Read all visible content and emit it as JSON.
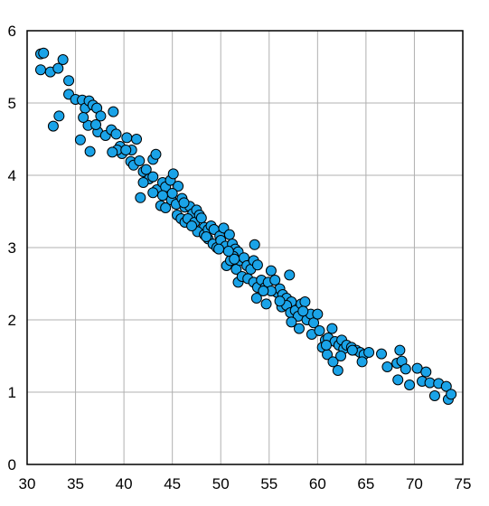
{
  "chart_data": {
    "type": "scatter",
    "title": "",
    "xlabel": "",
    "ylabel": "",
    "xlim": [
      30,
      75
    ],
    "ylim": [
      0,
      6
    ],
    "x_ticks": [
      30,
      35,
      40,
      45,
      50,
      55,
      60,
      65,
      70,
      75
    ],
    "y_ticks": [
      0,
      1,
      2,
      3,
      4,
      5,
      6
    ],
    "grid": true,
    "legend": "none",
    "point_color": "#1aa3e8",
    "point_edge_color": "#000000",
    "series": [
      {
        "points": [
          [
            31.4,
            5.68
          ],
          [
            31.7,
            5.69
          ],
          [
            31.4,
            5.46
          ],
          [
            32.4,
            5.43
          ],
          [
            33.2,
            5.48
          ],
          [
            33.7,
            5.6
          ],
          [
            34.3,
            5.31
          ],
          [
            32.7,
            4.68
          ],
          [
            33.3,
            4.82
          ],
          [
            34.3,
            5.12
          ],
          [
            35.0,
            5.05
          ],
          [
            35.7,
            5.04
          ],
          [
            36.0,
            4.93
          ],
          [
            36.4,
            5.03
          ],
          [
            36.8,
            4.97
          ],
          [
            37.2,
            4.93
          ],
          [
            37.6,
            4.82
          ],
          [
            37.3,
            4.6
          ],
          [
            38.1,
            4.55
          ],
          [
            38.7,
            4.63
          ],
          [
            38.9,
            4.88
          ],
          [
            35.5,
            4.49
          ],
          [
            36.5,
            4.33
          ],
          [
            36.3,
            4.69
          ],
          [
            39.2,
            4.57
          ],
          [
            39.6,
            4.4
          ],
          [
            39.8,
            4.3
          ],
          [
            39.3,
            4.35
          ],
          [
            38.8,
            4.32
          ],
          [
            40.3,
            4.52
          ],
          [
            40.8,
            4.35
          ],
          [
            41.3,
            4.5
          ],
          [
            40.7,
            4.19
          ],
          [
            41.0,
            4.14
          ],
          [
            41.6,
            4.2
          ],
          [
            42.0,
            4.05
          ],
          [
            42.3,
            4.08
          ],
          [
            42.6,
            3.95
          ],
          [
            43.0,
            4.22
          ],
          [
            43.3,
            4.29
          ],
          [
            43.0,
            3.98
          ],
          [
            43.4,
            3.8
          ],
          [
            44.0,
            3.9
          ],
          [
            44.3,
            3.84
          ],
          [
            44.8,
            3.93
          ],
          [
            45.1,
            4.02
          ],
          [
            41.7,
            3.69
          ],
          [
            43.0,
            3.76
          ],
          [
            43.8,
            3.58
          ],
          [
            44.3,
            3.55
          ],
          [
            44.9,
            3.66
          ],
          [
            45.4,
            3.6
          ],
          [
            45.6,
            3.85
          ],
          [
            46.0,
            3.68
          ],
          [
            46.3,
            3.56
          ],
          [
            45.5,
            3.45
          ],
          [
            45.9,
            3.4
          ],
          [
            46.3,
            3.35
          ],
          [
            46.8,
            3.57
          ],
          [
            47.1,
            3.47
          ],
          [
            46.6,
            3.4
          ],
          [
            47.3,
            3.35
          ],
          [
            47.5,
            3.52
          ],
          [
            47.8,
            3.45
          ],
          [
            48.0,
            3.41
          ],
          [
            48.3,
            3.28
          ],
          [
            47.6,
            3.22
          ],
          [
            48.3,
            3.18
          ],
          [
            48.7,
            3.25
          ],
          [
            49.0,
            3.3
          ],
          [
            49.3,
            3.25
          ],
          [
            48.7,
            3.12
          ],
          [
            49.2,
            3.05
          ],
          [
            49.6,
            3.0
          ],
          [
            49.9,
            3.16
          ],
          [
            50.3,
            3.27
          ],
          [
            50.0,
            3.1
          ],
          [
            50.5,
            3.02
          ],
          [
            50.9,
            3.18
          ],
          [
            51.2,
            3.05
          ],
          [
            51.5,
            2.98
          ],
          [
            51.8,
            2.94
          ],
          [
            51.3,
            2.88
          ],
          [
            50.6,
            2.75
          ],
          [
            51.0,
            2.82
          ],
          [
            51.6,
            2.7
          ],
          [
            52.0,
            2.82
          ],
          [
            52.4,
            2.86
          ],
          [
            52.7,
            2.75
          ],
          [
            53.1,
            2.7
          ],
          [
            53.4,
            2.82
          ],
          [
            53.8,
            2.76
          ],
          [
            53.5,
            3.04
          ],
          [
            51.8,
            2.52
          ],
          [
            52.2,
            2.6
          ],
          [
            52.8,
            2.57
          ],
          [
            53.4,
            2.52
          ],
          [
            53.8,
            2.45
          ],
          [
            54.2,
            2.55
          ],
          [
            54.6,
            2.45
          ],
          [
            54.9,
            2.52
          ],
          [
            55.2,
            2.68
          ],
          [
            55.6,
            2.55
          ],
          [
            55.8,
            2.38
          ],
          [
            56.1,
            2.43
          ],
          [
            56.4,
            2.35
          ],
          [
            56.8,
            2.3
          ],
          [
            57.1,
            2.62
          ],
          [
            57.3,
            2.25
          ],
          [
            53.7,
            2.3
          ],
          [
            54.7,
            2.22
          ],
          [
            55.2,
            2.4
          ],
          [
            56.3,
            2.18
          ],
          [
            56.8,
            2.2
          ],
          [
            57.2,
            2.1
          ],
          [
            57.7,
            2.13
          ],
          [
            58.0,
            2.05
          ],
          [
            58.3,
            2.22
          ],
          [
            58.7,
            2.25
          ],
          [
            57.3,
            1.97
          ],
          [
            58.1,
            1.88
          ],
          [
            58.9,
            2.0
          ],
          [
            59.3,
            2.08
          ],
          [
            59.6,
            1.96
          ],
          [
            60.0,
            2.08
          ],
          [
            59.4,
            1.8
          ],
          [
            60.2,
            1.85
          ],
          [
            60.8,
            1.72
          ],
          [
            61.1,
            1.75
          ],
          [
            61.5,
            1.88
          ],
          [
            61.8,
            1.7
          ],
          [
            62.2,
            1.65
          ],
          [
            62.5,
            1.72
          ],
          [
            62.7,
            1.6
          ],
          [
            63.0,
            1.65
          ],
          [
            60.5,
            1.62
          ],
          [
            61.0,
            1.52
          ],
          [
            61.6,
            1.42
          ],
          [
            62.1,
            1.3
          ],
          [
            63.5,
            1.62
          ],
          [
            64.0,
            1.58
          ],
          [
            64.4,
            1.55
          ],
          [
            64.8,
            1.52
          ],
          [
            65.3,
            1.55
          ],
          [
            64.6,
            1.42
          ],
          [
            66.6,
            1.53
          ],
          [
            67.2,
            1.35
          ],
          [
            68.2,
            1.4
          ],
          [
            68.5,
            1.58
          ],
          [
            68.7,
            1.43
          ],
          [
            69.1,
            1.32
          ],
          [
            68.3,
            1.17
          ],
          [
            69.5,
            1.1
          ],
          [
            70.3,
            1.33
          ],
          [
            70.8,
            1.15
          ],
          [
            71.2,
            1.28
          ],
          [
            71.6,
            1.13
          ],
          [
            72.1,
            0.95
          ],
          [
            72.5,
            1.12
          ],
          [
            73.3,
            1.08
          ],
          [
            73.5,
            0.9
          ],
          [
            73.8,
            0.97
          ],
          [
            60.9,
            1.65
          ],
          [
            63.6,
            1.58
          ],
          [
            62.4,
            1.5
          ],
          [
            47.0,
            3.3
          ],
          [
            44.0,
            3.72
          ],
          [
            40.2,
            4.35
          ],
          [
            37.1,
            4.7
          ],
          [
            35.8,
            4.8
          ],
          [
            46.2,
            3.62
          ],
          [
            49.8,
            2.98
          ],
          [
            51.4,
            2.84
          ],
          [
            54.4,
            2.4
          ],
          [
            56.1,
            2.26
          ],
          [
            58.5,
            2.12
          ],
          [
            50.8,
            2.95
          ],
          [
            48.5,
            3.15
          ],
          [
            45.0,
            3.75
          ],
          [
            42.0,
            3.9
          ]
        ]
      }
    ]
  }
}
